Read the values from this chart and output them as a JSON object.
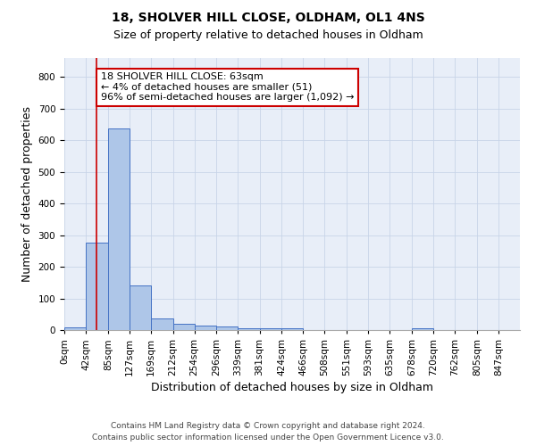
{
  "title1": "18, SHOLVER HILL CLOSE, OLDHAM, OL1 4NS",
  "title2": "Size of property relative to detached houses in Oldham",
  "xlabel": "Distribution of detached houses by size in Oldham",
  "ylabel": "Number of detached properties",
  "categories": [
    "0sqm",
    "42sqm",
    "85sqm",
    "127sqm",
    "169sqm",
    "212sqm",
    "254sqm",
    "296sqm",
    "339sqm",
    "381sqm",
    "424sqm",
    "466sqm",
    "508sqm",
    "551sqm",
    "593sqm",
    "635sqm",
    "678sqm",
    "720sqm",
    "762sqm",
    "805sqm",
    "847sqm"
  ],
  "bin_edges": [
    0,
    42,
    85,
    127,
    169,
    212,
    254,
    296,
    339,
    381,
    424,
    466,
    508,
    551,
    593,
    635,
    678,
    720,
    762,
    805,
    847
  ],
  "bar_heights": [
    8,
    275,
    638,
    140,
    37,
    20,
    14,
    11,
    7,
    6,
    7,
    0,
    0,
    0,
    0,
    0,
    5,
    0,
    0,
    0,
    0
  ],
  "bar_color": "#aec6e8",
  "bar_edge_color": "#4472c4",
  "property_line_x": 63,
  "property_line_color": "#cc0000",
  "annotation_line1": "18 SHOLVER HILL CLOSE: 63sqm",
  "annotation_line2": "← 4% of detached houses are smaller (51)",
  "annotation_line3": "96% of semi-detached houses are larger (1,092) →",
  "annotation_box_color": "#ffffff",
  "annotation_box_edge": "#cc0000",
  "grid_color": "#c8d4e8",
  "background_color": "#e8eef8",
  "footer_text": "Contains HM Land Registry data © Crown copyright and database right 2024.\nContains public sector information licensed under the Open Government Licence v3.0.",
  "ylim": [
    0,
    860
  ],
  "yticks": [
    0,
    100,
    200,
    300,
    400,
    500,
    600,
    700,
    800
  ],
  "title_fontsize": 10,
  "subtitle_fontsize": 9,
  "axis_label_fontsize": 9,
  "tick_fontsize": 7.5,
  "footer_fontsize": 6.5,
  "annotation_fontsize": 8
}
